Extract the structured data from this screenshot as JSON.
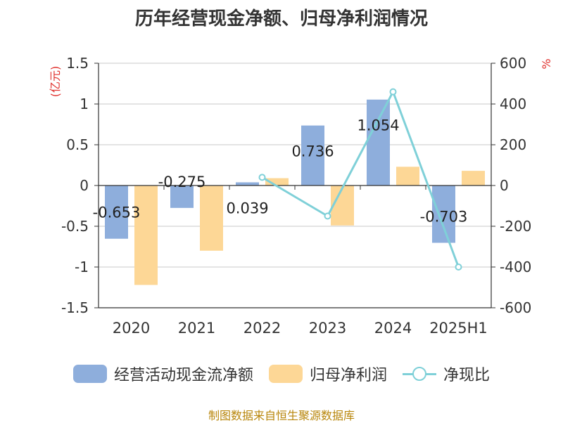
{
  "chart_data": {
    "type": "bar",
    "title": "历年经营现金净额、归母净利润情况",
    "categories": [
      "2020",
      "2021",
      "2022",
      "2023",
      "2024",
      "2025H1"
    ],
    "series": [
      {
        "name": "经营活动现金流净额",
        "type": "bar",
        "axis": "left",
        "color": "#8eaedc",
        "values": [
          -0.653,
          -0.275,
          0.039,
          0.736,
          1.054,
          -0.703
        ],
        "labels": [
          "-0.653",
          "-0.275",
          "0.039",
          "0.736",
          "1.054",
          "-0.703"
        ]
      },
      {
        "name": "归母净利润",
        "type": "bar",
        "axis": "left",
        "color": "#fdd796",
        "values": [
          -1.22,
          -0.8,
          0.09,
          -0.49,
          0.23,
          0.18
        ]
      },
      {
        "name": "净现比",
        "type": "line",
        "axis": "right",
        "color": "#7fd0d8",
        "values": [
          null,
          null,
          40,
          -150,
          460,
          -400
        ]
      }
    ],
    "y_left": {
      "label": "(亿元)",
      "range": [
        -1.5,
        1.5
      ],
      "ticks": [
        -1.5,
        -1,
        -0.5,
        0,
        0.5,
        1,
        1.5
      ],
      "tick_labels": [
        "-1.5",
        "-1",
        "-0.5",
        "0",
        "0.5",
        "1",
        "1.5"
      ]
    },
    "y_right": {
      "label": "%",
      "range": [
        -600,
        600
      ],
      "ticks": [
        -600,
        -400,
        -200,
        0,
        200,
        400,
        600
      ],
      "tick_labels": [
        "-600",
        "-400",
        "-200",
        "0",
        "200",
        "400",
        "600"
      ]
    },
    "grid": true,
    "legend_position": "bottom"
  },
  "source": "制图数据来自恒生聚源数据库"
}
